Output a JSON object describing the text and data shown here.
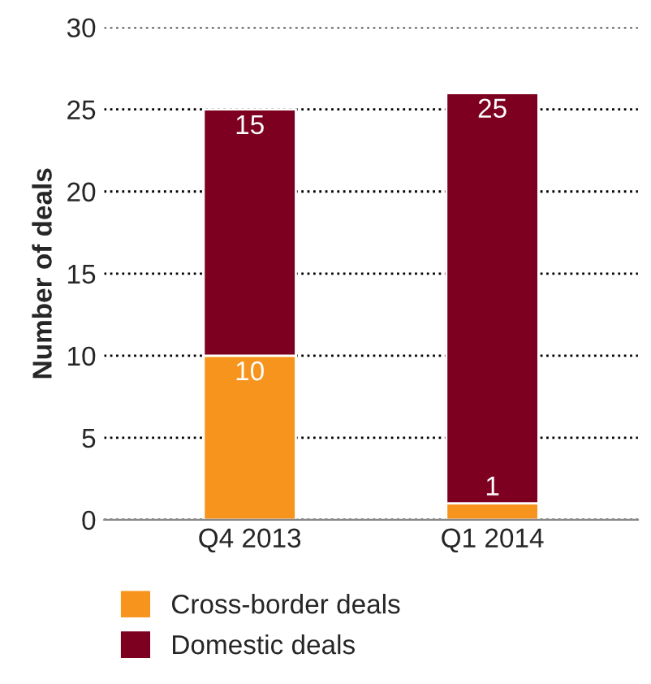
{
  "chart_data": {
    "type": "bar",
    "ylabel": "Number of deals",
    "categories": [
      "Q4 2013",
      "Q1 2014"
    ],
    "stacked": true,
    "series": [
      {
        "name": "Cross-border deals",
        "color": "#f7941d",
        "values": [
          10,
          1
        ]
      },
      {
        "name": "Domestic deals",
        "color": "#7d0021",
        "values": [
          15,
          25
        ]
      }
    ],
    "ylim": [
      0,
      30
    ],
    "yticks": [
      0,
      5,
      10,
      15,
      20,
      25,
      30
    ],
    "grid": "y",
    "legend": "bottom",
    "data_labels": true
  }
}
